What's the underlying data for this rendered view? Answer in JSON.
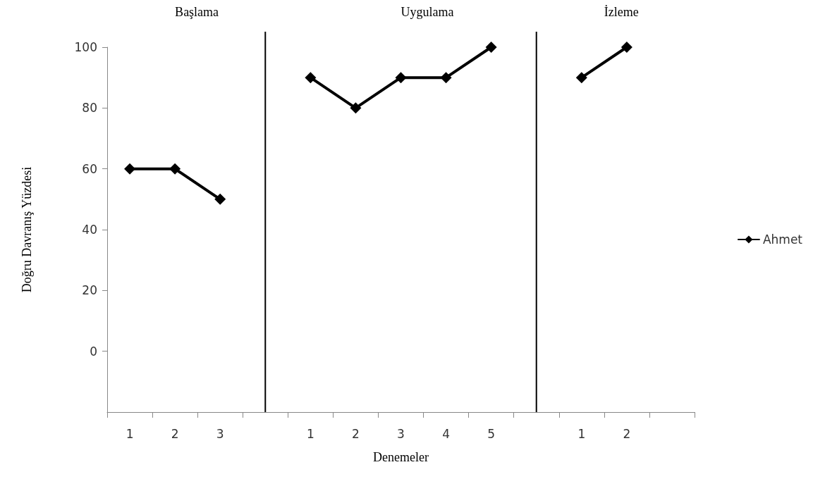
{
  "chart_data": {
    "type": "line",
    "xlabel": "Denemeler",
    "ylabel": "Doğru Davranış Yüzdesi",
    "annotations": [
      "Başlama",
      "Uygulama",
      "İzleme"
    ],
    "categories": [
      "1",
      "2",
      "3",
      null,
      "1",
      "2",
      "3",
      "4",
      "5",
      null,
      "1",
      "2",
      null
    ],
    "series": [
      {
        "name": "Ahmet",
        "color": "#000000",
        "values": [
          60,
          60,
          50,
          null,
          90,
          80,
          90,
          90,
          100,
          null,
          90,
          100,
          null
        ]
      }
    ],
    "ylim": [
      -20,
      100
    ],
    "yticks": [
      0,
      20,
      40,
      60,
      80,
      100
    ],
    "legend": "right",
    "marker": "diamond",
    "line_style": "solid"
  }
}
